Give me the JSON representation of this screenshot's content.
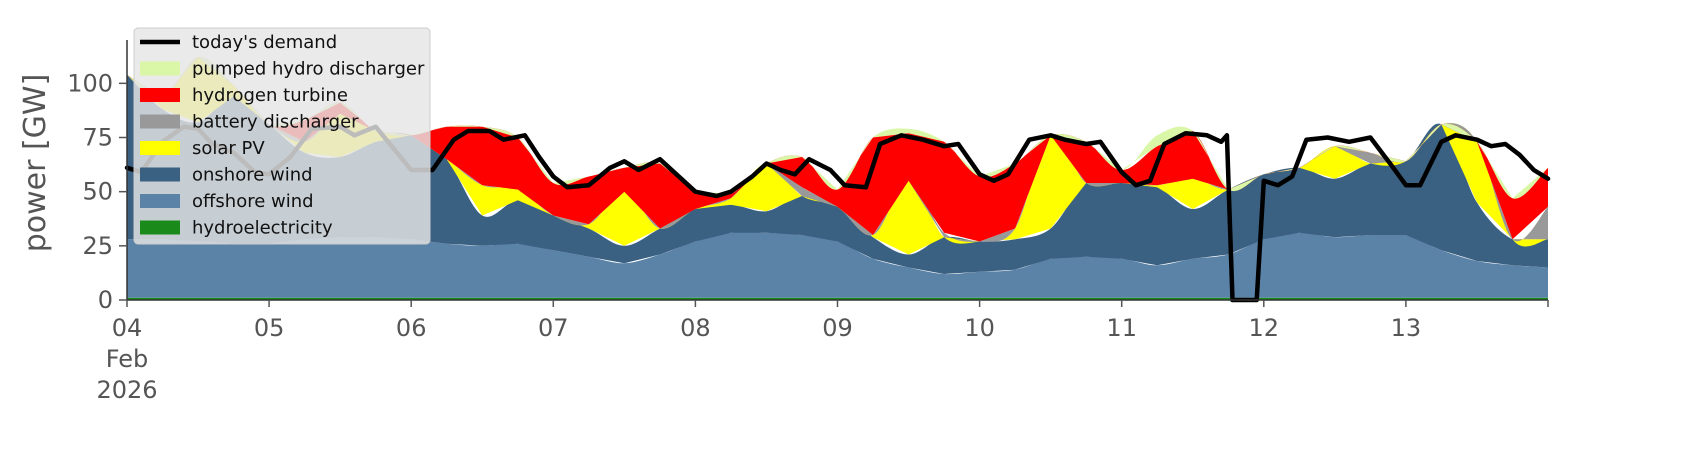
{
  "chart_data": {
    "type": "area",
    "stacked": true,
    "title": "",
    "xlabel": "",
    "ylabel": "power [GW]",
    "ylim": [
      0,
      120
    ],
    "y_ticks": [
      0,
      25,
      50,
      75,
      100
    ],
    "x_range_days": [
      4,
      14
    ],
    "x_ticks": [
      {
        "day": 4,
        "label": "04",
        "sublabel1": "Feb",
        "sublabel2": "2026"
      },
      {
        "day": 5,
        "label": "05"
      },
      {
        "day": 6,
        "label": "06"
      },
      {
        "day": 7,
        "label": "07"
      },
      {
        "day": 8,
        "label": "08"
      },
      {
        "day": 9,
        "label": "09"
      },
      {
        "day": 10,
        "label": "10"
      },
      {
        "day": 11,
        "label": "11"
      },
      {
        "day": 12,
        "label": "12"
      },
      {
        "day": 13,
        "label": "13"
      },
      {
        "day": 14,
        "label": ""
      }
    ],
    "grid": false,
    "legend_position": "top-left",
    "legend": [
      {
        "label": "today's demand",
        "color": "#000000",
        "kind": "line"
      },
      {
        "label": "pumped hydro discharger",
        "color": "#d9f7a6",
        "kind": "patch"
      },
      {
        "label": "hydrogen turbine",
        "color": "#ff0000",
        "kind": "patch"
      },
      {
        "label": "battery discharger",
        "color": "#999999",
        "kind": "patch"
      },
      {
        "label": "solar PV",
        "color": "#ffff00",
        "kind": "patch"
      },
      {
        "label": "onshore wind",
        "color": "#3b6182",
        "kind": "patch"
      },
      {
        "label": "offshore wind",
        "color": "#5b83a8",
        "kind": "patch"
      },
      {
        "label": "hydroelectricity",
        "color": "#1a8a1a",
        "kind": "patch"
      }
    ],
    "x_days": [
      4.0,
      4.25,
      4.5,
      4.75,
      5.0,
      5.25,
      5.5,
      5.75,
      6.0,
      6.25,
      6.5,
      6.75,
      7.0,
      7.25,
      7.5,
      7.75,
      8.0,
      8.25,
      8.5,
      8.75,
      9.0,
      9.25,
      9.5,
      9.75,
      10.0,
      10.25,
      10.5,
      10.75,
      11.0,
      11.25,
      11.5,
      11.75,
      12.0,
      12.25,
      12.5,
      12.75,
      13.0,
      13.25,
      13.5,
      13.75,
      14.0
    ],
    "series": [
      {
        "name": "hydroelectricity",
        "color": "#1a8a1a",
        "values": [
          1,
          1,
          1,
          1,
          1,
          1,
          1,
          1,
          1,
          1,
          1,
          1,
          1,
          1,
          1,
          1,
          1,
          1,
          1,
          1,
          1,
          1,
          1,
          1,
          1,
          1,
          1,
          1,
          1,
          1,
          1,
          1,
          1,
          1,
          1,
          1,
          1,
          1,
          1,
          1,
          1
        ]
      },
      {
        "name": "offshore wind",
        "color": "#5b83a8",
        "values": [
          27,
          27,
          26,
          25,
          25,
          27,
          28,
          28,
          27,
          25,
          24,
          25,
          22,
          19,
          16,
          20,
          26,
          30,
          30,
          29,
          26,
          18,
          14,
          11,
          12,
          13,
          18,
          19,
          18,
          15,
          18,
          20,
          27,
          30,
          28,
          29,
          29,
          22,
          17,
          15,
          14
        ]
      },
      {
        "name": "onshore wind",
        "color": "#3b6182",
        "values": [
          76,
          60,
          55,
          68,
          55,
          40,
          37,
          44,
          48,
          39,
          14,
          20,
          16,
          13,
          8,
          12,
          15,
          13,
          10,
          18,
          16,
          10,
          6,
          17,
          14,
          14,
          14,
          34,
          35,
          36,
          23,
          30,
          30,
          30,
          27,
          33,
          34,
          58,
          27,
          12,
          13
        ]
      },
      {
        "name": "solar PV",
        "color": "#ffff00",
        "values": [
          0,
          5,
          30,
          5,
          0,
          5,
          20,
          5,
          0,
          0,
          14,
          5,
          0,
          2,
          25,
          0,
          0,
          3,
          22,
          0,
          0,
          1,
          34,
          0,
          0,
          5,
          43,
          0,
          0,
          1,
          14,
          0,
          0,
          0,
          15,
          0,
          0,
          0,
          28,
          0,
          0
        ]
      },
      {
        "name": "battery discharger",
        "color": "#999999",
        "values": [
          0,
          0,
          0,
          0,
          0,
          0,
          0,
          0,
          0,
          0,
          0,
          0,
          0,
          0,
          0,
          0,
          0,
          0,
          0,
          4,
          0,
          0,
          0,
          2,
          0,
          0,
          0,
          0,
          0,
          0,
          0,
          0,
          0,
          0,
          0,
          5,
          0,
          0,
          0,
          0,
          15
        ]
      },
      {
        "name": "hydrogen turbine",
        "color": "#ff0000",
        "values": [
          0,
          0,
          0,
          0,
          0,
          10,
          5,
          0,
          0,
          15,
          27,
          24,
          15,
          22,
          11,
          30,
          8,
          2,
          0,
          14,
          8,
          45,
          22,
          42,
          30,
          30,
          0,
          19,
          6,
          18,
          22,
          0,
          0,
          0,
          0,
          0,
          0,
          0,
          0,
          19,
          18
        ]
      },
      {
        "name": "pumped hydro discharger",
        "color": "#d9f7a6",
        "values": [
          0,
          0,
          0,
          0,
          0,
          0,
          0,
          0,
          0,
          0,
          0,
          0,
          0,
          0,
          0,
          0,
          0,
          0,
          0,
          0,
          0,
          0,
          2,
          0,
          0,
          0,
          0,
          0,
          0,
          5,
          0,
          0,
          0,
          0,
          0,
          0,
          0,
          0,
          0,
          0,
          0
        ]
      }
    ],
    "demand": {
      "name": "today's demand",
      "color": "#000000",
      "points": [
        [
          4.0,
          61
        ],
        [
          4.1,
          59
        ],
        [
          4.25,
          73
        ],
        [
          4.4,
          80
        ],
        [
          4.5,
          79
        ],
        [
          4.6,
          72
        ],
        [
          4.75,
          68
        ],
        [
          4.9,
          59
        ],
        [
          5.0,
          58
        ],
        [
          5.15,
          66
        ],
        [
          5.3,
          79
        ],
        [
          5.5,
          80
        ],
        [
          5.6,
          76
        ],
        [
          5.75,
          80
        ],
        [
          5.9,
          68
        ],
        [
          6.0,
          60
        ],
        [
          6.15,
          60
        ],
        [
          6.3,
          74
        ],
        [
          6.4,
          78
        ],
        [
          6.55,
          78
        ],
        [
          6.65,
          74
        ],
        [
          6.8,
          76
        ],
        [
          6.9,
          66
        ],
        [
          7.0,
          57
        ],
        [
          7.1,
          52
        ],
        [
          7.25,
          53
        ],
        [
          7.4,
          61
        ],
        [
          7.5,
          64
        ],
        [
          7.6,
          60
        ],
        [
          7.75,
          65
        ],
        [
          7.9,
          56
        ],
        [
          8.0,
          50
        ],
        [
          8.15,
          48
        ],
        [
          8.25,
          50
        ],
        [
          8.4,
          57
        ],
        [
          8.5,
          63
        ],
        [
          8.6,
          60
        ],
        [
          8.7,
          58
        ],
        [
          8.8,
          65
        ],
        [
          8.95,
          60
        ],
        [
          9.05,
          53
        ],
        [
          9.2,
          52
        ],
        [
          9.3,
          72
        ],
        [
          9.45,
          76
        ],
        [
          9.6,
          74
        ],
        [
          9.75,
          71
        ],
        [
          9.85,
          72
        ],
        [
          10.0,
          58
        ],
        [
          10.1,
          55
        ],
        [
          10.2,
          58
        ],
        [
          10.35,
          74
        ],
        [
          10.5,
          76
        ],
        [
          10.6,
          74
        ],
        [
          10.75,
          72
        ],
        [
          10.85,
          73
        ],
        [
          11.0,
          59
        ],
        [
          11.1,
          53
        ],
        [
          11.2,
          55
        ],
        [
          11.3,
          72
        ],
        [
          11.45,
          77
        ],
        [
          11.6,
          76
        ],
        [
          11.7,
          73
        ],
        [
          11.74,
          76
        ],
        [
          11.78,
          0
        ],
        [
          11.95,
          0
        ],
        [
          12.0,
          55
        ],
        [
          12.1,
          53
        ],
        [
          12.2,
          57
        ],
        [
          12.3,
          74
        ],
        [
          12.45,
          75
        ],
        [
          12.6,
          73
        ],
        [
          12.75,
          75
        ],
        [
          12.9,
          62
        ],
        [
          13.0,
          53
        ],
        [
          13.1,
          53
        ],
        [
          13.25,
          73
        ],
        [
          13.35,
          76
        ],
        [
          13.5,
          74
        ],
        [
          13.6,
          71
        ],
        [
          13.7,
          72
        ],
        [
          13.8,
          67
        ],
        [
          13.9,
          60
        ],
        [
          14.0,
          56
        ]
      ]
    }
  }
}
